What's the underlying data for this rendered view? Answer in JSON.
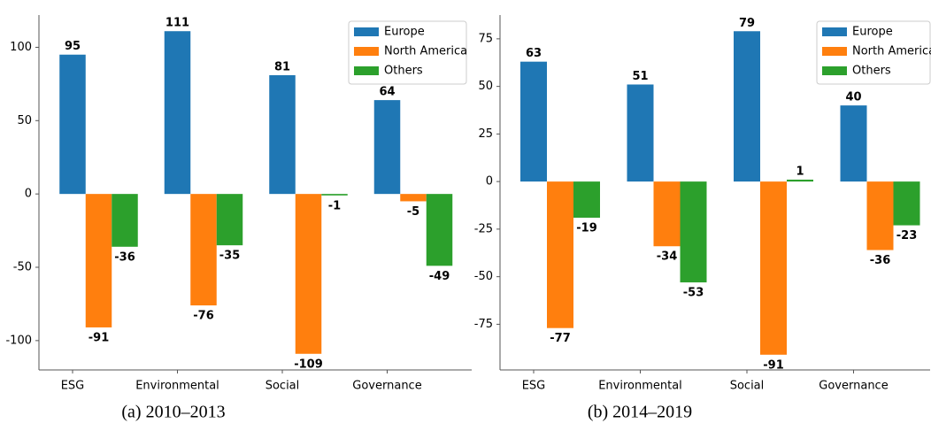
{
  "chart_data": [
    {
      "type": "bar",
      "title": "(a) 2010–2013",
      "categories": [
        "ESG",
        "Environmental",
        "Social",
        "Governance"
      ],
      "series": [
        {
          "name": "Europe",
          "color": "#1f77b4",
          "values": [
            95,
            111,
            81,
            64
          ]
        },
        {
          "name": "North America",
          "color": "#ff7f0e",
          "values": [
            -91,
            -76,
            -109,
            -5
          ]
        },
        {
          "name": "Others",
          "color": "#2ca02c",
          "values": [
            -36,
            -35,
            -1,
            -49
          ]
        }
      ],
      "ylim": [
        -120,
        122
      ],
      "yticks": [
        -100,
        -50,
        0,
        50,
        100
      ],
      "grid": false,
      "legend": "upper right"
    },
    {
      "type": "bar",
      "title": "(b) 2014–2019",
      "categories": [
        "ESG",
        "Environmental",
        "Social",
        "Governance"
      ],
      "series": [
        {
          "name": "Europe",
          "color": "#1f77b4",
          "values": [
            63,
            51,
            79,
            40
          ]
        },
        {
          "name": "North America",
          "color": "#ff7f0e",
          "values": [
            -77,
            -34,
            -91,
            -36
          ]
        },
        {
          "name": "Others",
          "color": "#2ca02c",
          "values": [
            -19,
            -53,
            1,
            -23
          ]
        }
      ],
      "ylim": [
        -99,
        87.5
      ],
      "yticks": [
        -75,
        -50,
        -25,
        0,
        25,
        50,
        75
      ],
      "grid": false,
      "legend": "upper right"
    }
  ]
}
